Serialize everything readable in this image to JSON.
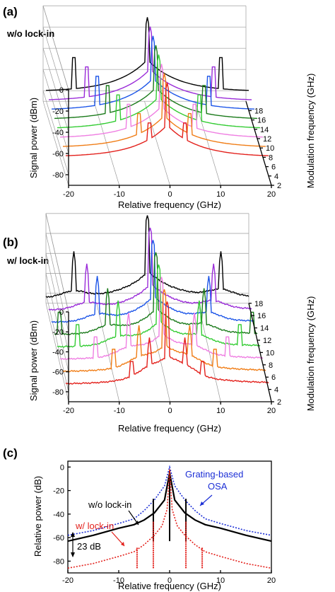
{
  "chart_data": [
    {
      "panel_label": "(a)",
      "type": "line",
      "view": "3d-waterfall",
      "annotation": "w/o lock-in",
      "xlabel": "Relative frequency (GHz)",
      "ylabel": "Signal power (dBm)",
      "zlabel": "Modulation frequency (GHz)",
      "xlim": [
        -20,
        20
      ],
      "ylim": [
        -90,
        0
      ],
      "zlim": [
        2,
        20
      ],
      "xticks": [
        "-20",
        "-10",
        "0",
        "10",
        "20"
      ],
      "yticks": [
        "-80",
        "-60",
        "-40",
        "-20",
        "0"
      ],
      "zticks": [
        "2",
        "4",
        "6",
        "8",
        "10",
        "12",
        "14",
        "16",
        "18"
      ],
      "series": [
        {
          "modulation_ghz": 4,
          "color": "#e3211c",
          "sideband_ghz": 3.5,
          "sideband_peak_dbm": -50
        },
        {
          "modulation_ghz": 6,
          "color": "#f07d16",
          "sideband_ghz": 5,
          "sideband_peak_dbm": -48
        },
        {
          "modulation_ghz": 8,
          "color": "#ef7fe2",
          "sideband_ghz": 6.5,
          "sideband_peak_dbm": -46
        },
        {
          "modulation_ghz": 10,
          "color": "#33cc33",
          "sideband_ghz": 8,
          "sideband_peak_dbm": -45
        },
        {
          "modulation_ghz": 12,
          "color": "#1a7a1a",
          "sideband_ghz": 9.5,
          "sideband_peak_dbm": -44
        },
        {
          "modulation_ghz": 14,
          "color": "#1c55e8",
          "sideband_ghz": 11,
          "sideband_peak_dbm": -43
        },
        {
          "modulation_ghz": 16,
          "color": "#9a2bd9",
          "sideband_ghz": 12.5,
          "sideband_peak_dbm": -42
        },
        {
          "modulation_ghz": 18,
          "color": "#000000",
          "sideband_ghz": 14.5,
          "sideband_peak_dbm": -40
        }
      ]
    },
    {
      "panel_label": "(b)",
      "type": "line",
      "view": "3d-waterfall",
      "annotation": "w/ lock-in",
      "xlabel": "Relative frequency (GHz)",
      "ylabel": "Signal power (dBm)",
      "zlabel": "Modulation frequency (GHz)",
      "xlim": [
        -20,
        20
      ],
      "ylim": [
        -90,
        0
      ],
      "zlim": [
        2,
        18
      ],
      "xticks": [
        "-20",
        "-10",
        "0",
        "10",
        "20"
      ],
      "yticks": [
        "-80",
        "-60",
        "-40",
        "-20",
        "0"
      ],
      "zticks": [
        "2",
        "4",
        "6",
        "8",
        "10",
        "12",
        "14",
        "16",
        "18"
      ],
      "series": [
        {
          "modulation_ghz": 4,
          "color": "#e3211c",
          "sideband_ghz": 3.5
        },
        {
          "modulation_ghz": 6,
          "color": "#f07d16",
          "sideband_ghz": 5
        },
        {
          "modulation_ghz": 8,
          "color": "#ef7fe2",
          "sideband_ghz": 6.5
        },
        {
          "modulation_ghz": 10,
          "color": "#33cc33",
          "sideband_ghz": 8
        },
        {
          "modulation_ghz": 12,
          "color": "#1a7a1a",
          "sideband_ghz": 9.5
        },
        {
          "modulation_ghz": 14,
          "color": "#1c55e8",
          "sideband_ghz": 11
        },
        {
          "modulation_ghz": 16,
          "color": "#9a2bd9",
          "sideband_ghz": 12.5
        },
        {
          "modulation_ghz": 18,
          "color": "#000000",
          "sideband_ghz": 14.5
        }
      ]
    },
    {
      "panel_label": "(c)",
      "type": "line",
      "xlabel": "Relative frequency (GHz)",
      "ylabel": "Relative power (dB)",
      "xlim": [
        -20,
        20
      ],
      "ylim": [
        -90,
        5
      ],
      "xticks": [
        "-20",
        "-10",
        "0",
        "10",
        "20"
      ],
      "yticks": [
        "-80",
        "-60",
        "-40",
        "-20",
        "0"
      ],
      "annotations": [
        {
          "text": "w/o lock-in",
          "color": "#000000"
        },
        {
          "text": "w/ lock-in",
          "color": "#e3211c"
        },
        {
          "text": "Grating-based",
          "color": "#1c2fd6"
        },
        {
          "text": "OSA",
          "color": "#1c2fd6"
        },
        {
          "text": "23 dB",
          "color": "#000000"
        }
      ],
      "series": [
        {
          "key": "osa",
          "style": "dotted",
          "color": "#1c2fd6",
          "x": [
            -20,
            -15,
            -10,
            -7,
            -5,
            -3,
            -1,
            0,
            1,
            3,
            5,
            7,
            10,
            15,
            20
          ],
          "y": [
            -58,
            -54,
            -48,
            -44,
            -37,
            -28,
            -16,
            0,
            -16,
            -28,
            -37,
            -44,
            -48,
            -54,
            -58
          ]
        },
        {
          "key": "wo",
          "style": "solid",
          "color": "#000000",
          "x": [
            -20,
            -15,
            -10,
            -7,
            -5,
            -3,
            -1,
            0,
            1,
            3,
            5,
            7,
            10,
            15,
            20
          ],
          "y": [
            -63,
            -58,
            -52,
            -49,
            -45,
            -39,
            -28,
            -5,
            -28,
            -39,
            -45,
            -49,
            -52,
            -58,
            -63
          ],
          "spikes": [
            {
              "x": -3.2,
              "y": -27
            },
            {
              "x": 3.2,
              "y": -27
            },
            {
              "x": 0,
              "y": -3
            }
          ]
        },
        {
          "key": "w",
          "style": "dotted",
          "color": "#e3211c",
          "x": [
            -20,
            -15,
            -10,
            -7,
            -5,
            -3,
            -1.5,
            -0.5,
            0,
            0.5,
            1.5,
            3,
            5,
            7,
            10,
            15,
            20
          ],
          "y": [
            -86,
            -82,
            -76,
            -72,
            -66,
            -58,
            -50,
            -36,
            -2,
            -36,
            -50,
            -58,
            -66,
            -72,
            -76,
            -82,
            -86
          ],
          "spikes": [
            {
              "x": -6.4,
              "y": -68
            },
            {
              "x": 6.4,
              "y": -68
            },
            {
              "x": -3.2,
              "y": -46
            },
            {
              "x": 3.2,
              "y": -46
            }
          ]
        }
      ]
    }
  ]
}
